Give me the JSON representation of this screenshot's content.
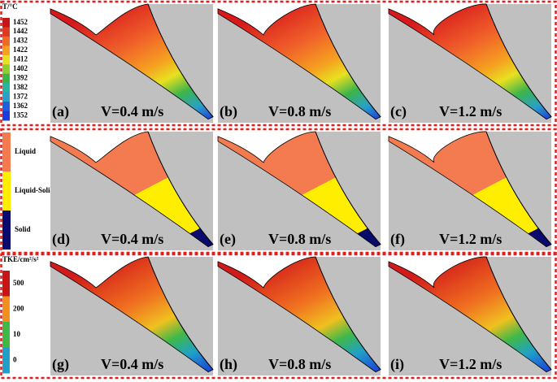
{
  "rows": [
    {
      "legend": {
        "title": "T/°C",
        "labels": [
          "1452",
          "1442",
          "1432",
          "1422",
          "1412",
          "1402",
          "1392",
          "1382",
          "1372",
          "1362",
          "1352"
        ]
      },
      "panels": [
        {
          "label": "(a)",
          "caption": "V=0.4 m/s"
        },
        {
          "label": "(b)",
          "caption": "V=0.8 m/s"
        },
        {
          "label": "(c)",
          "caption": "V=1.2 m/s"
        }
      ]
    },
    {
      "legend": {
        "labels": [
          "Liquid",
          "Liquid-Solid",
          "Solid"
        ]
      },
      "panels": [
        {
          "label": "(d)",
          "caption": "V=0.4 m/s"
        },
        {
          "label": "(e)",
          "caption": "V=0.8 m/s"
        },
        {
          "label": "(f)",
          "caption": "V=1.2 m/s"
        }
      ]
    },
    {
      "legend": {
        "title": "TKE/cm²/s²",
        "labels": [
          "500",
          "200",
          "10",
          "0"
        ]
      },
      "panels": [
        {
          "label": "(g)",
          "caption": "V=0.4 m/s"
        },
        {
          "label": "(h)",
          "caption": "V=0.8 m/s"
        },
        {
          "label": "(i)",
          "caption": "V=1.2 m/s"
        }
      ]
    }
  ]
}
